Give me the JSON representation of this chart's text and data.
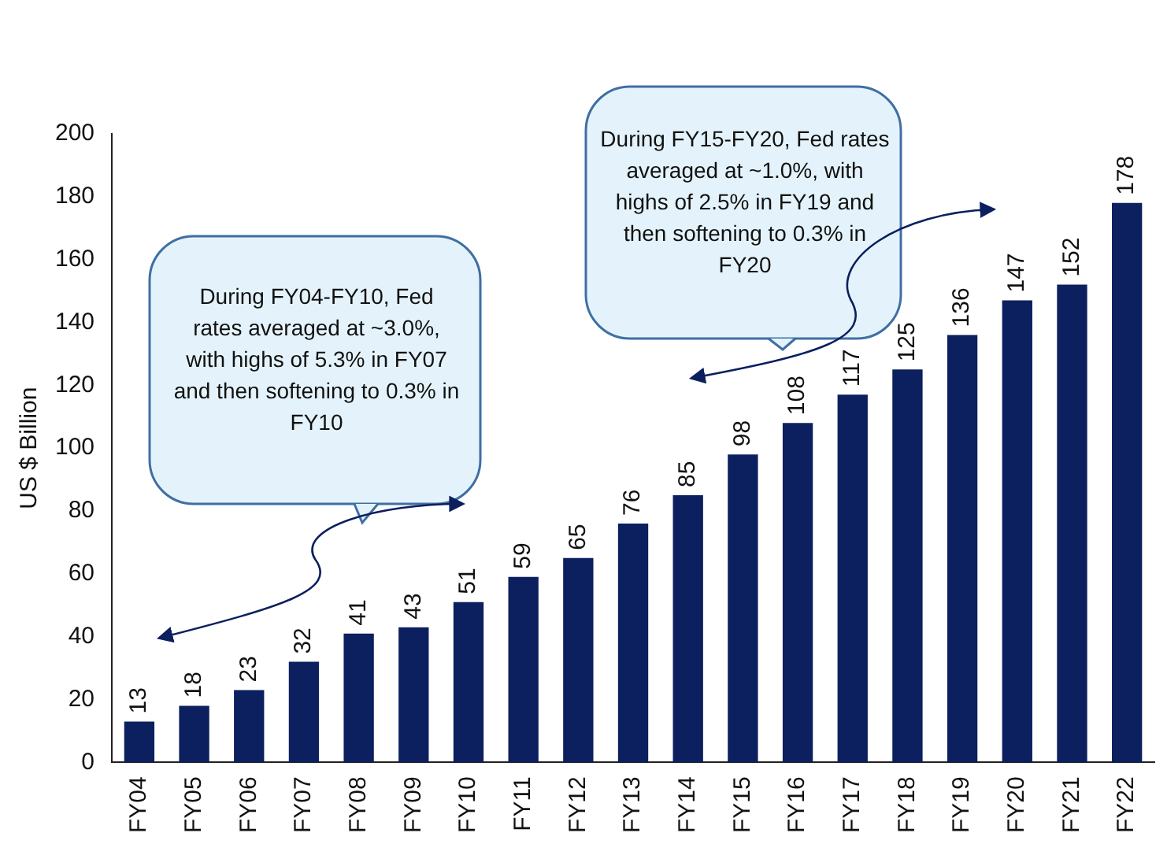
{
  "chart_data": {
    "type": "bar",
    "ylabel": "US $ Billion",
    "categories": [
      "FY04",
      "FY05",
      "FY06",
      "FY07",
      "FY08",
      "FY09",
      "FY10",
      "FY11",
      "FY12",
      "FY13",
      "FY14",
      "FY15",
      "FY16",
      "FY17",
      "FY18",
      "FY19",
      "FY20",
      "FY21",
      "FY22"
    ],
    "values": [
      13,
      18,
      23,
      32,
      41,
      43,
      51,
      59,
      65,
      76,
      85,
      98,
      108,
      117,
      125,
      136,
      147,
      152,
      178
    ],
    "color": "#0c1f5e",
    "ylim": [
      0,
      200
    ],
    "yticks": [
      0,
      20,
      40,
      60,
      80,
      100,
      120,
      140,
      160,
      180,
      200
    ],
    "grid": false,
    "legend": false,
    "data_labels": true,
    "annotations": [
      "During FY04-FY10, Fed rates averaged at ~3.0%, with highs of 5.3% in FY07 and then softening to 0.3% in FY10",
      "During FY15-FY20, Fed rates averaged at ~1.0%, with highs of 2.5% in FY19 and then softening to 0.3% in FY20"
    ]
  }
}
